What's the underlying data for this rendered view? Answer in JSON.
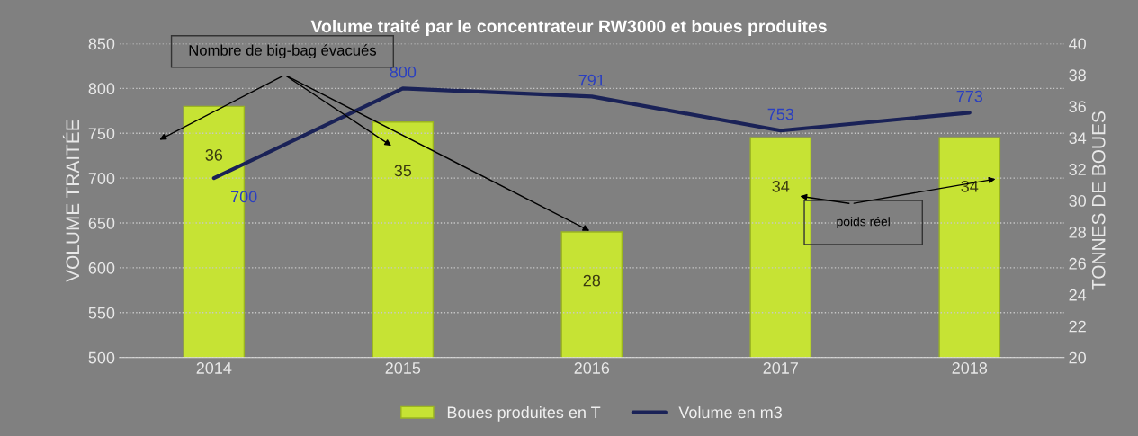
{
  "chart_data": {
    "type": "bar",
    "title": "Volume traité par le concentrateur RW3000 et boues produites",
    "categories": [
      "2014",
      "2015",
      "2016",
      "2017",
      "2018"
    ],
    "series": [
      {
        "name": "Boues produites en T",
        "axis": "y2",
        "color": "#c6e334",
        "values": [
          36,
          35,
          28,
          34,
          34
        ]
      },
      {
        "name": "Volume en m3",
        "type": "line",
        "axis": "y",
        "color": "#1a2257",
        "values": [
          700,
          800,
          791,
          753,
          773
        ]
      }
    ],
    "ylabel": "VOLUME TRAITÉE",
    "y2label": "TONNES DE BOUES",
    "ylim": [
      500,
      850
    ],
    "yticks": [
      500,
      550,
      600,
      650,
      700,
      750,
      800,
      850
    ],
    "y2lim": [
      20,
      40
    ],
    "y2ticks": [
      20,
      22,
      24,
      26,
      28,
      30,
      32,
      34,
      36,
      38,
      40
    ],
    "data_labels": true,
    "grid": "y",
    "legend": "bottom",
    "marker": "none",
    "line_style": "solid",
    "annotations": [
      {
        "text": "Nombre de big-bag évacués",
        "x": "2016",
        "y": 640
      },
      "poids réel"
    ]
  }
}
